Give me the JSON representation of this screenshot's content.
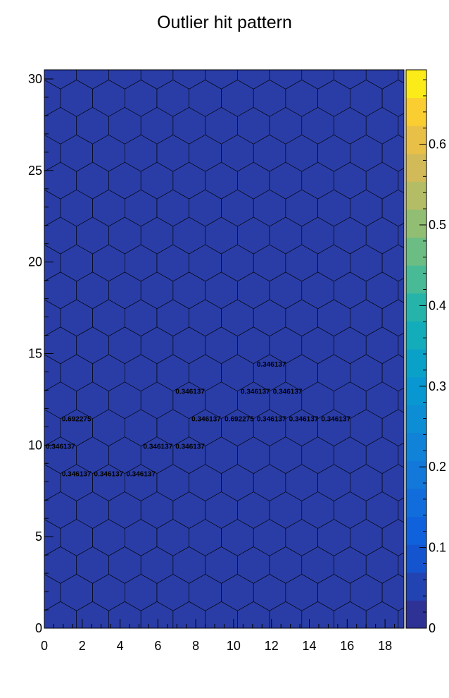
{
  "chart_data": {
    "type": "heatmap",
    "subtype": "hexagonal-bin",
    "title": "Outlier hit pattern",
    "xlabel": "",
    "ylabel": "",
    "xlim": [
      0,
      19
    ],
    "ylim": [
      0,
      30.5
    ],
    "x_ticks": [
      "0",
      "2",
      "4",
      "6",
      "8",
      "10",
      "12",
      "14",
      "16",
      "18"
    ],
    "y_ticks": [
      "0",
      "5",
      "10",
      "15",
      "20",
      "25",
      "30"
    ],
    "colorbar": {
      "range": [
        0,
        0.692275
      ],
      "ticks": [
        "0",
        "0.1",
        "0.2",
        "0.3",
        "0.4",
        "0.5",
        "0.6"
      ],
      "palette": "kBird"
    },
    "empty_cell_color": "#2a3da6",
    "grid": false,
    "default_value": 0,
    "nonzero_cells": [
      {
        "x": 12.0,
        "y": 14.45,
        "value": 0.346137,
        "label": "0.346137"
      },
      {
        "x": 7.7,
        "y": 12.95,
        "value": 0.346137,
        "label": "0.346137"
      },
      {
        "x": 11.15,
        "y": 12.95,
        "value": 0.346137,
        "label": "0.346137"
      },
      {
        "x": 12.85,
        "y": 12.95,
        "value": 0.346137,
        "label": "0.346137"
      },
      {
        "x": 1.7,
        "y": 11.45,
        "value": 0.692275,
        "label": "0.692275"
      },
      {
        "x": 8.55,
        "y": 11.45,
        "value": 0.346137,
        "label": "0.346137"
      },
      {
        "x": 10.3,
        "y": 11.45,
        "value": 0.692275,
        "label": "0.692275"
      },
      {
        "x": 12.0,
        "y": 11.45,
        "value": 0.346137,
        "label": "0.346137"
      },
      {
        "x": 13.7,
        "y": 11.45,
        "value": 0.346137,
        "label": "0.346137"
      },
      {
        "x": 15.4,
        "y": 11.45,
        "value": 0.346137,
        "label": "0.346137"
      },
      {
        "x": 0.85,
        "y": 9.95,
        "value": 0.346137,
        "label": "0.346137"
      },
      {
        "x": 6.0,
        "y": 9.95,
        "value": 0.346137,
        "label": "0.346137"
      },
      {
        "x": 7.7,
        "y": 9.95,
        "value": 0.346137,
        "label": "0.346137"
      },
      {
        "x": 1.7,
        "y": 8.45,
        "value": 0.346137,
        "label": "0.346137"
      },
      {
        "x": 3.4,
        "y": 8.45,
        "value": 0.346137,
        "label": "0.346137"
      },
      {
        "x": 5.1,
        "y": 8.45,
        "value": 0.346137,
        "label": "0.346137"
      }
    ]
  }
}
